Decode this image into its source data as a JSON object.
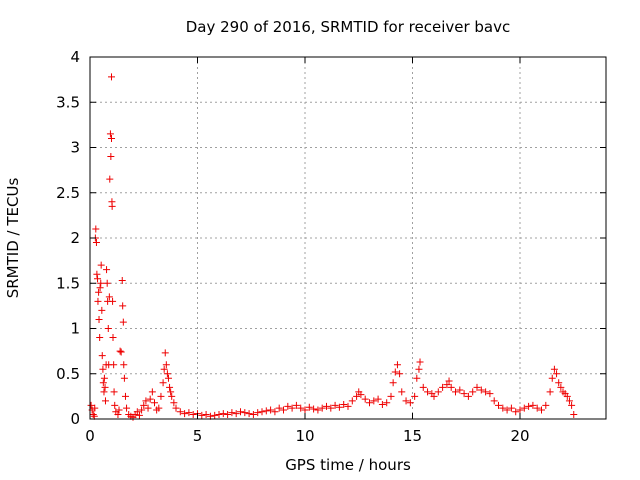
{
  "chart_data": {
    "type": "scatter",
    "title": "Day 290 of 2016, SRMTID for receiver bavc",
    "xlabel": "GPS time / hours",
    "ylabel": "SRMTID / TECUs",
    "xlim": [
      0,
      24
    ],
    "ylim": [
      0,
      4
    ],
    "xticks": [
      0,
      5,
      10,
      15,
      20
    ],
    "xtick_labels": [
      "0",
      "5",
      "10",
      "15",
      "20"
    ],
    "yticks": [
      0,
      0.5,
      1,
      1.5,
      2,
      2.5,
      3,
      3.5,
      4
    ],
    "ytick_labels": [
      "0",
      "0.5",
      "1",
      "1.5",
      "2",
      "2.5",
      "3",
      "3.5",
      "4"
    ],
    "grid": true,
    "marker": "plus",
    "color": "#ee0000",
    "series": [
      {
        "name": "SRMTID",
        "points": [
          [
            0.05,
            0.15
          ],
          [
            0.1,
            0.1
          ],
          [
            0.15,
            0.05
          ],
          [
            0.2,
            0.03
          ],
          [
            0.22,
            0.12
          ],
          [
            0.25,
            2.0
          ],
          [
            0.27,
            2.1
          ],
          [
            0.3,
            1.95
          ],
          [
            0.32,
            1.6
          ],
          [
            0.35,
            1.55
          ],
          [
            0.37,
            1.3
          ],
          [
            0.4,
            1.4
          ],
          [
            0.42,
            1.1
          ],
          [
            0.45,
            0.9
          ],
          [
            0.47,
            1.45
          ],
          [
            0.5,
            1.5
          ],
          [
            0.52,
            1.7
          ],
          [
            0.55,
            1.2
          ],
          [
            0.57,
            0.7
          ],
          [
            0.6,
            0.55
          ],
          [
            0.62,
            0.4
          ],
          [
            0.65,
            0.3
          ],
          [
            0.67,
            0.45
          ],
          [
            0.7,
            0.35
          ],
          [
            0.72,
            0.2
          ],
          [
            0.75,
            0.6
          ],
          [
            0.77,
            1.65
          ],
          [
            0.8,
            1.5
          ],
          [
            0.82,
            1.3
          ],
          [
            0.85,
            1.0
          ],
          [
            0.87,
            0.6
          ],
          [
            0.9,
            1.35
          ],
          [
            0.92,
            2.65
          ],
          [
            0.95,
            3.15
          ],
          [
            0.97,
            2.9
          ],
          [
            1.0,
            3.1
          ],
          [
            1.0,
            3.78
          ],
          [
            1.02,
            2.4
          ],
          [
            1.03,
            2.35
          ],
          [
            1.05,
            1.3
          ],
          [
            1.07,
            0.9
          ],
          [
            1.1,
            0.6
          ],
          [
            1.12,
            0.3
          ],
          [
            1.15,
            0.15
          ],
          [
            1.2,
            0.08
          ],
          [
            1.3,
            0.05
          ],
          [
            1.35,
            0.1
          ],
          [
            1.4,
            0.75
          ],
          [
            1.45,
            0.74
          ],
          [
            1.5,
            1.53
          ],
          [
            1.52,
            1.25
          ],
          [
            1.55,
            1.07
          ],
          [
            1.57,
            0.6
          ],
          [
            1.6,
            0.45
          ],
          [
            1.65,
            0.25
          ],
          [
            1.7,
            0.12
          ],
          [
            1.8,
            0.05
          ],
          [
            1.9,
            0.03
          ],
          [
            2.0,
            0.02
          ],
          [
            2.1,
            0.05
          ],
          [
            2.2,
            0.08
          ],
          [
            2.3,
            0.04
          ],
          [
            2.4,
            0.1
          ],
          [
            2.5,
            0.15
          ],
          [
            2.6,
            0.2
          ],
          [
            2.7,
            0.12
          ],
          [
            2.8,
            0.22
          ],
          [
            2.9,
            0.3
          ],
          [
            3.0,
            0.18
          ],
          [
            3.1,
            0.1
          ],
          [
            3.2,
            0.12
          ],
          [
            3.3,
            0.25
          ],
          [
            3.4,
            0.4
          ],
          [
            3.45,
            0.55
          ],
          [
            3.5,
            0.73
          ],
          [
            3.55,
            0.6
          ],
          [
            3.6,
            0.5
          ],
          [
            3.65,
            0.45
          ],
          [
            3.7,
            0.35
          ],
          [
            3.75,
            0.3
          ],
          [
            3.8,
            0.25
          ],
          [
            3.9,
            0.18
          ],
          [
            4.0,
            0.12
          ],
          [
            4.2,
            0.08
          ],
          [
            4.4,
            0.06
          ],
          [
            4.6,
            0.07
          ],
          [
            4.8,
            0.05
          ],
          [
            5.0,
            0.06
          ],
          [
            5.2,
            0.04
          ],
          [
            5.4,
            0.05
          ],
          [
            5.6,
            0.03
          ],
          [
            5.8,
            0.04
          ],
          [
            6.0,
            0.05
          ],
          [
            6.2,
            0.06
          ],
          [
            6.4,
            0.05
          ],
          [
            6.6,
            0.07
          ],
          [
            6.8,
            0.06
          ],
          [
            7.0,
            0.08
          ],
          [
            7.2,
            0.07
          ],
          [
            7.4,
            0.06
          ],
          [
            7.6,
            0.05
          ],
          [
            7.8,
            0.07
          ],
          [
            8.0,
            0.08
          ],
          [
            8.2,
            0.09
          ],
          [
            8.4,
            0.1
          ],
          [
            8.6,
            0.08
          ],
          [
            8.8,
            0.12
          ],
          [
            9.0,
            0.1
          ],
          [
            9.2,
            0.14
          ],
          [
            9.4,
            0.12
          ],
          [
            9.6,
            0.15
          ],
          [
            9.8,
            0.12
          ],
          [
            10.0,
            0.1
          ],
          [
            10.2,
            0.13
          ],
          [
            10.4,
            0.11
          ],
          [
            10.6,
            0.1
          ],
          [
            10.8,
            0.12
          ],
          [
            11.0,
            0.14
          ],
          [
            11.2,
            0.12
          ],
          [
            11.4,
            0.15
          ],
          [
            11.6,
            0.13
          ],
          [
            11.8,
            0.16
          ],
          [
            12.0,
            0.14
          ],
          [
            12.2,
            0.2
          ],
          [
            12.4,
            0.25
          ],
          [
            12.5,
            0.3
          ],
          [
            12.6,
            0.27
          ],
          [
            12.8,
            0.22
          ],
          [
            13.0,
            0.18
          ],
          [
            13.2,
            0.2
          ],
          [
            13.4,
            0.22
          ],
          [
            13.6,
            0.16
          ],
          [
            13.8,
            0.18
          ],
          [
            14.0,
            0.25
          ],
          [
            14.1,
            0.4
          ],
          [
            14.2,
            0.52
          ],
          [
            14.3,
            0.6
          ],
          [
            14.4,
            0.5
          ],
          [
            14.5,
            0.3
          ],
          [
            14.7,
            0.2
          ],
          [
            14.9,
            0.18
          ],
          [
            15.1,
            0.25
          ],
          [
            15.2,
            0.45
          ],
          [
            15.3,
            0.55
          ],
          [
            15.35,
            0.63
          ],
          [
            15.5,
            0.35
          ],
          [
            15.7,
            0.3
          ],
          [
            15.9,
            0.28
          ],
          [
            16.0,
            0.25
          ],
          [
            16.2,
            0.3
          ],
          [
            16.4,
            0.35
          ],
          [
            16.6,
            0.38
          ],
          [
            16.7,
            0.42
          ],
          [
            16.8,
            0.35
          ],
          [
            17.0,
            0.3
          ],
          [
            17.2,
            0.32
          ],
          [
            17.4,
            0.28
          ],
          [
            17.6,
            0.25
          ],
          [
            17.8,
            0.3
          ],
          [
            18.0,
            0.35
          ],
          [
            18.2,
            0.32
          ],
          [
            18.4,
            0.3
          ],
          [
            18.6,
            0.28
          ],
          [
            18.8,
            0.2
          ],
          [
            19.0,
            0.15
          ],
          [
            19.2,
            0.12
          ],
          [
            19.4,
            0.1
          ],
          [
            19.6,
            0.12
          ],
          [
            19.8,
            0.08
          ],
          [
            20.0,
            0.1
          ],
          [
            20.2,
            0.12
          ],
          [
            20.4,
            0.14
          ],
          [
            20.6,
            0.15
          ],
          [
            20.8,
            0.12
          ],
          [
            21.0,
            0.1
          ],
          [
            21.2,
            0.15
          ],
          [
            21.4,
            0.3
          ],
          [
            21.5,
            0.45
          ],
          [
            21.6,
            0.55
          ],
          [
            21.7,
            0.5
          ],
          [
            21.8,
            0.4
          ],
          [
            21.9,
            0.35
          ],
          [
            22.0,
            0.3
          ],
          [
            22.1,
            0.28
          ],
          [
            22.2,
            0.25
          ],
          [
            22.3,
            0.2
          ],
          [
            22.4,
            0.15
          ],
          [
            22.5,
            0.05
          ]
        ]
      }
    ]
  }
}
